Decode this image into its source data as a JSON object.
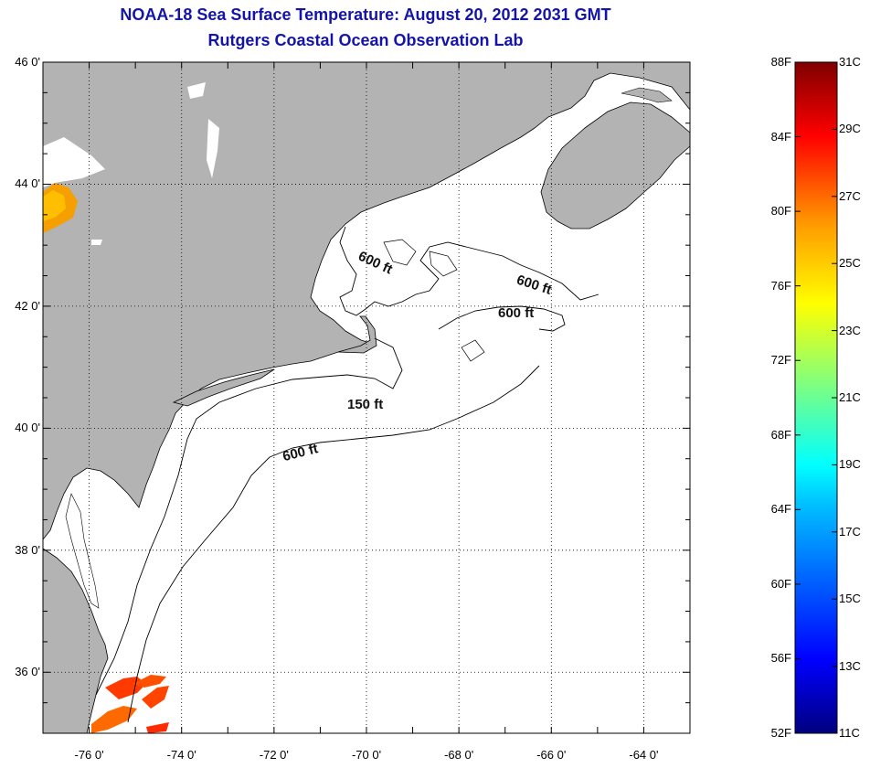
{
  "title": {
    "line1": "NOAA-18 Sea Surface Temperature:  August 20, 2012 2031 GMT",
    "line2": "Rutgers Coastal Ocean Observation Lab"
  },
  "map": {
    "latitudes": [
      46,
      44,
      42,
      40,
      38,
      36
    ],
    "lat_labels": [
      "46 0'",
      "44 0'",
      "42 0'",
      "40 0'",
      "38 0'",
      "36 0'"
    ],
    "longitudes": [
      -76,
      -74,
      -72,
      -70,
      -68,
      -66,
      -64
    ],
    "lon_labels": [
      "-76 0'",
      "-74 0'",
      "-72 0'",
      "-70 0'",
      "-68 0'",
      "-66 0'",
      "-64 0'"
    ],
    "extent": {
      "lon_min": -77,
      "lon_max": -63,
      "lat_min": 35,
      "lat_max": 46
    },
    "land_color": "#b3b3b3",
    "water_color": "#ffffff",
    "grid": "dotted",
    "contours": [
      {
        "label": "600 ft"
      },
      {
        "label": "600 ft"
      },
      {
        "label": "600 ft"
      },
      {
        "label": "150 ft"
      },
      {
        "label": "600 ft"
      }
    ]
  },
  "colorbar": {
    "fahrenheit_labels": [
      "88F",
      "84F",
      "80F",
      "76F",
      "72F",
      "68F",
      "64F",
      "60F",
      "56F",
      "52F"
    ],
    "celsius_labels": [
      "31C",
      "29C",
      "27C",
      "25C",
      "23C",
      "21C",
      "19C",
      "17C",
      "15C",
      "13C",
      "11C"
    ],
    "range_c": [
      11,
      31
    ],
    "range_f": [
      52,
      88
    ],
    "colors": [
      "#00007f",
      "#0000ff",
      "#007fff",
      "#00ffff",
      "#7fff7f",
      "#ffff00",
      "#ff7f00",
      "#ff0000",
      "#7f0000"
    ]
  }
}
